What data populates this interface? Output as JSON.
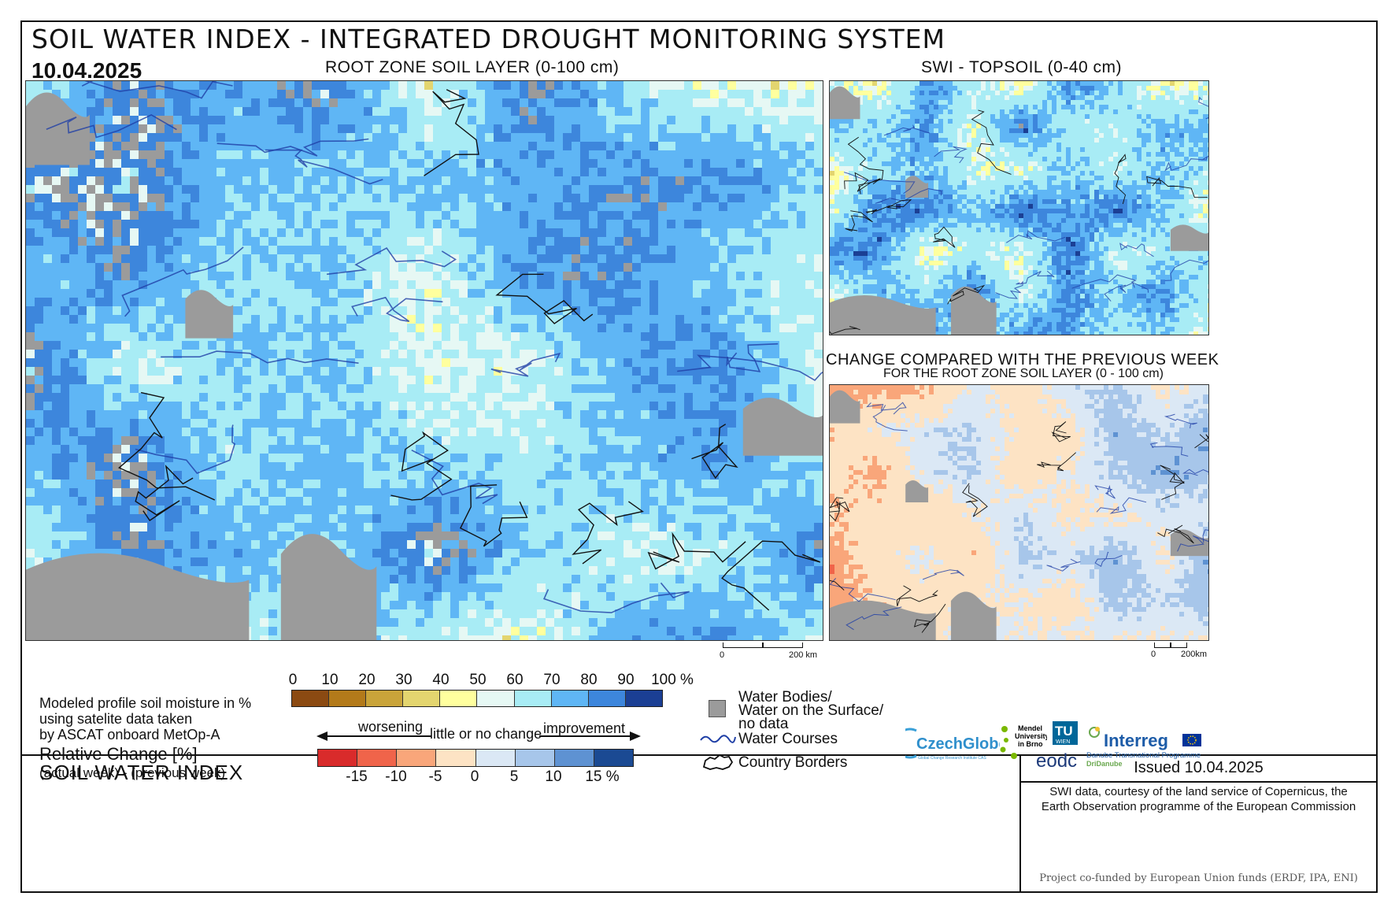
{
  "header": {
    "title": "SOIL WATER INDEX - INTEGRATED DROUGHT MONITORING SYSTEM",
    "date": "10.04.2025"
  },
  "maps": {
    "main_label": "ROOT ZONE SOIL LAYER (0-100 cm)",
    "topsoil_label": "SWI - TOPSOIL (0-40 cm)",
    "change_label": "CHANGE COMPARED WITH THE PREVIOUS WEEK",
    "change_sublabel": "FOR THE ROOT ZONE SOIL LAYER (0 - 100 cm)"
  },
  "scalebars": {
    "main": {
      "zero": "0",
      "end": "200 km"
    },
    "small": {
      "zero": "0",
      "end": "200km"
    }
  },
  "legend": {
    "title": "SOIL WATER INDEX",
    "desc_lines": [
      "Modeled profile soil moisture in %",
      "using satelite data taken",
      "by ASCAT onboard MetOp-A"
    ],
    "rel_title": "Relative Change [%]",
    "rel_sub": "(actual week) - (previous week)",
    "swi_ticks": [
      "0",
      "10",
      "20",
      "30",
      "40",
      "50",
      "60",
      "70",
      "80",
      "90",
      "100 %"
    ],
    "swi_colors": [
      "#8b4a12",
      "#b37a1a",
      "#c9a43a",
      "#e3d56f",
      "#ffff9e",
      "#e6f8f4",
      "#a8ecf5",
      "#5fb6f5",
      "#3d86dc",
      "#1b3f94"
    ],
    "change_ticks": [
      "-15",
      "-10",
      "-5",
      "0",
      "5",
      "10",
      "15 %"
    ],
    "change_colors": [
      "#d92b2b",
      "#f0644a",
      "#f9a67a",
      "#fde3c4",
      "#dbe8f5",
      "#a7c6ea",
      "#5e92d2",
      "#1b4a93"
    ],
    "worsening": "worsening",
    "no_change": "little or no change",
    "improvement": "improvement",
    "water_bodies": [
      "Water Bodies/",
      "Water on the Surface/",
      "no data"
    ],
    "water_courses": "Water Courses",
    "country_borders": "Country Borders"
  },
  "info": {
    "issued": "Issued 10.04.2025",
    "credit_lines": [
      "SWI data, courtesy of the land service of Copernicus, the",
      "Earth Observation programme of the European Commission"
    ],
    "funded": "Project co-funded by European Union funds (ERDF, IPA, ENI)",
    "logos": {
      "czechglobe": "CzechGlobe",
      "czechglobe_sub": "Global Change Research Institute CAS",
      "mendel": [
        "Mendel",
        "University",
        "in Brno"
      ],
      "tu": "TU",
      "tu_sub": "WIEN",
      "eodc": "eodc",
      "interreg": "Interreg",
      "interreg_sub": "Danube Transnational Programme",
      "dridanube": "DriDanube"
    }
  },
  "colors": {
    "no_data": "#9b9b9b",
    "water_course": "#1f3fa6",
    "border": "#111111"
  }
}
